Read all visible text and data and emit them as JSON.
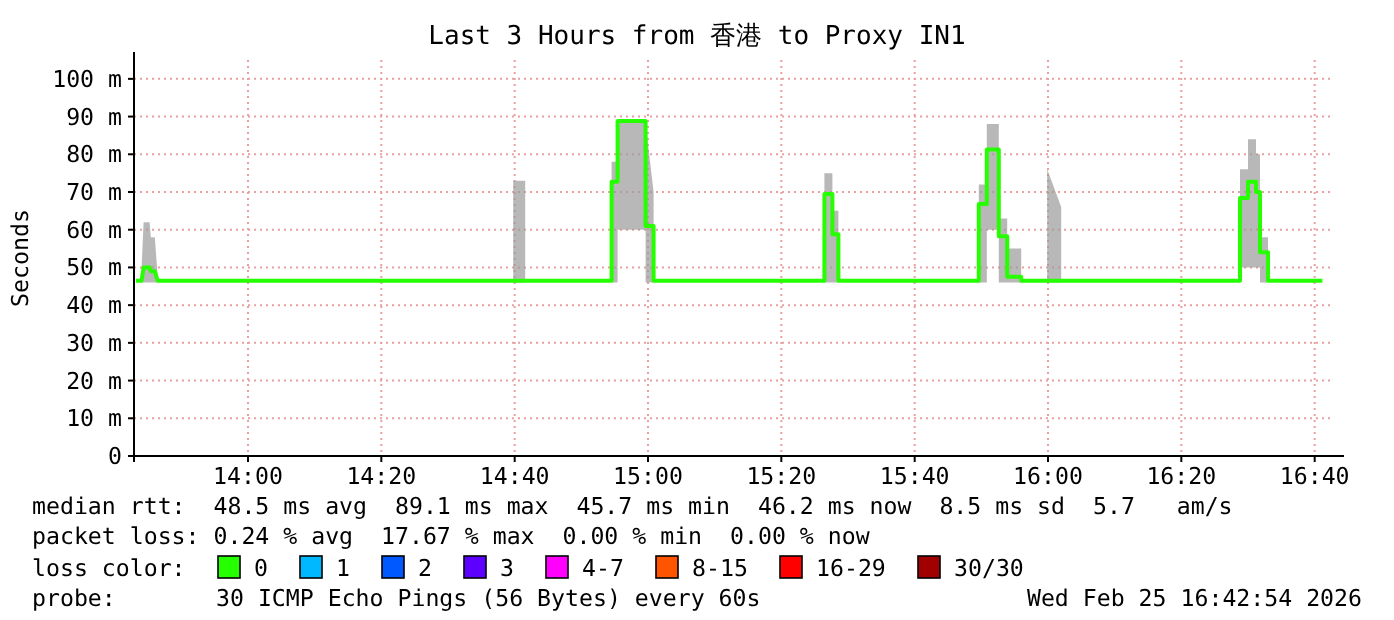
{
  "chart_data": {
    "type": "line",
    "title": "Last 3 Hours from 香港 to Proxy IN1",
    "ylabel": "Seconds",
    "xlim": [
      13.715,
      16.715
    ],
    "ylim": [
      0,
      105
    ],
    "xticks": [
      {
        "value": 14,
        "label": "14:00"
      },
      {
        "value": 14.3333,
        "label": "14:20"
      },
      {
        "value": 14.6667,
        "label": "14:40"
      },
      {
        "value": 15,
        "label": "15:00"
      },
      {
        "value": 15.3333,
        "label": "15:20"
      },
      {
        "value": 15.6667,
        "label": "15:40"
      },
      {
        "value": 16,
        "label": "16:00"
      },
      {
        "value": 16.3333,
        "label": "16:20"
      },
      {
        "value": 16.6667,
        "label": "16:40"
      }
    ],
    "yticks": [
      0,
      {
        "value": 10,
        "label": "10 m"
      },
      {
        "value": 20,
        "label": "20 m"
      },
      {
        "value": 30,
        "label": "30 m"
      },
      {
        "value": 40,
        "label": "40 m"
      },
      {
        "value": 50,
        "label": "50 m"
      },
      {
        "value": 60,
        "label": "60 m"
      },
      {
        "value": 70,
        "label": "70 m"
      },
      {
        "value": 80,
        "label": "80 m"
      },
      {
        "value": 90,
        "label": "90 m"
      },
      {
        "value": 100,
        "label": "100 m"
      }
    ],
    "grid": true,
    "legend": "bottom",
    "legend_title": "loss color:",
    "series": [
      {
        "name": "0",
        "color": "#26ff00",
        "x": [
          13.72,
          13.734,
          13.739,
          13.754,
          13.757,
          13.767,
          13.774,
          13.78,
          14.66,
          14.663,
          14.693,
          14.7,
          14.905,
          14.909,
          14.909,
          14.924,
          14.924,
          14.994,
          14.994,
          15.014,
          15.014,
          15.02,
          15.438,
          15.441,
          15.441,
          15.461,
          15.461,
          15.476,
          15.476,
          15.48,
          15.823,
          15.827,
          15.827,
          15.847,
          15.847,
          15.877,
          15.877,
          15.898,
          15.898,
          15.933,
          15.933,
          15.94,
          15.995,
          15.998,
          16.033,
          16.04,
          16.476,
          16.48,
          16.48,
          16.5,
          16.5,
          16.52,
          16.52,
          16.53,
          16.53,
          16.55,
          16.55,
          16.556,
          16.686
        ],
        "values": [
          46.5,
          46.5,
          50,
          50,
          49,
          49,
          46.5,
          46.5,
          46.5,
          46.5,
          46.5,
          46.5,
          46.5,
          46.5,
          72.7,
          72.7,
          88.8,
          88.8,
          61,
          61,
          46.5,
          46.5,
          46.5,
          46.5,
          69.5,
          69.5,
          58.8,
          58.8,
          46.5,
          46.5,
          46.5,
          46.5,
          66.8,
          66.8,
          81.3,
          81.3,
          58.3,
          58.3,
          47.5,
          47.5,
          46.5,
          46.5,
          46.5,
          46.5,
          46.5,
          46.5,
          46.5,
          46.5,
          68.4,
          68.4,
          72.7,
          72.7,
          70,
          70,
          54,
          54,
          46.5,
          46.5,
          46.5
        ],
        "lower": [
          null,
          46,
          46,
          46,
          46,
          46,
          46,
          null,
          null,
          46,
          46,
          null,
          null,
          46,
          46,
          46,
          60,
          60,
          46,
          46,
          46,
          null,
          null,
          46,
          46,
          46,
          46,
          46,
          46,
          null,
          null,
          46,
          46,
          46,
          60,
          60,
          46,
          46,
          46,
          46,
          46,
          null,
          null,
          46,
          46,
          null,
          null,
          46,
          50,
          50,
          50,
          50,
          50,
          50,
          46,
          46,
          46,
          null,
          null
        ],
        "upper": [
          null,
          50,
          62,
          62,
          58,
          58,
          48,
          null,
          null,
          73,
          73,
          null,
          null,
          60,
          78,
          78,
          89,
          89,
          88,
          70,
          47,
          null,
          null,
          47,
          75,
          75,
          65,
          65,
          47,
          null,
          null,
          47,
          72,
          72,
          88,
          88,
          63,
          63,
          55,
          55,
          47,
          null,
          null,
          76,
          66,
          null,
          null,
          47,
          76,
          76,
          84,
          84,
          80,
          80,
          58,
          58,
          47,
          null,
          null
        ]
      },
      {
        "name": "1",
        "color": "#00b8ff"
      },
      {
        "name": "2",
        "color": "#0059ff"
      },
      {
        "name": "3",
        "color": "#5e00ff"
      },
      {
        "name": "4-7",
        "color": "#ff00ff"
      },
      {
        "name": "8-15",
        "color": "#ff5500"
      },
      {
        "name": "16-29",
        "color": "#ff0000"
      },
      {
        "name": "30/30",
        "color": "#a10000"
      }
    ],
    "annotations": [
      "median rtt:  48.5 ms avg  89.1 ms max  45.7 ms min  46.2 ms now  8.5 ms sd  5.7   am/s",
      "packet loss: 0.24 % avg  17.67 % max  0.00 % min  0.00 % now",
      "probe:",
      "30 ICMP Echo Pings (56 Bytes) every 60s",
      "Wed Feb 25 16:42:54 2026"
    ]
  }
}
